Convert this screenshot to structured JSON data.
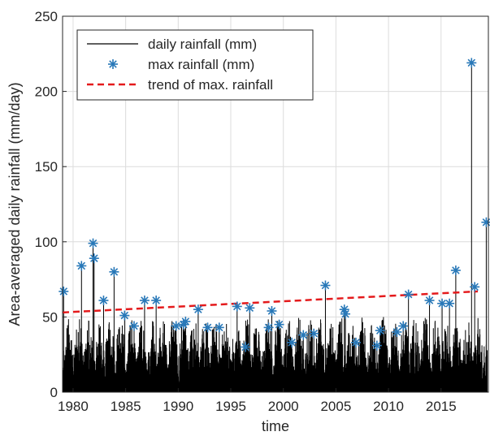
{
  "chart_data": {
    "type": "line",
    "title": "",
    "xlabel": "time",
    "ylabel": "Area-averaged daily rainfall (mm/day)",
    "xlim": [
      1979,
      2019.5
    ],
    "ylim": [
      0,
      250
    ],
    "xticks": [
      1980,
      1985,
      1990,
      1995,
      2000,
      2005,
      2010,
      2015
    ],
    "yticks": [
      0,
      50,
      100,
      150,
      200,
      250
    ],
    "grid": true,
    "legend_position": "top-left",
    "colors": {
      "daily": "#000000",
      "max": "#2878b8",
      "trend": "#e41a1c",
      "grid": "#dcdcdc",
      "axis": "#262626"
    },
    "series": [
      {
        "name": "daily rainfall (mm)",
        "style": "line",
        "note_values": "annual maxima coincide with the max rainfall markers below; remaining daily values are dense spikes mostly between 0 and 50 mm"
      },
      {
        "name": "max rainfall (mm)",
        "style": "asterisk",
        "points": [
          [
            1979.1,
            67
          ],
          [
            1980.8,
            84
          ],
          [
            1981.9,
            99
          ],
          [
            1982.0,
            89
          ],
          [
            1982.9,
            61
          ],
          [
            1983.9,
            80
          ],
          [
            1984.9,
            51
          ],
          [
            1985.8,
            44
          ],
          [
            1986.8,
            61
          ],
          [
            1987.9,
            61
          ],
          [
            1989.8,
            44
          ],
          [
            1990.5,
            45
          ],
          [
            1990.7,
            47
          ],
          [
            1991.9,
            55
          ],
          [
            1992.8,
            43
          ],
          [
            1993.9,
            43
          ],
          [
            1995.6,
            57
          ],
          [
            1996.4,
            30
          ],
          [
            1996.8,
            56
          ],
          [
            1998.9,
            54
          ],
          [
            1998.6,
            43
          ],
          [
            1999.6,
            45
          ],
          [
            2000.8,
            33
          ],
          [
            2001.9,
            38
          ],
          [
            2002.9,
            39
          ],
          [
            2004.0,
            71
          ],
          [
            2005.8,
            55
          ],
          [
            2005.9,
            52
          ],
          [
            2006.9,
            33
          ],
          [
            2008.9,
            31
          ],
          [
            2009.2,
            41
          ],
          [
            2010.8,
            40
          ],
          [
            2011.4,
            44
          ],
          [
            2011.9,
            65
          ],
          [
            2013.9,
            61
          ],
          [
            2015.1,
            59
          ],
          [
            2015.8,
            59
          ],
          [
            2016.4,
            81
          ],
          [
            2017.9,
            219
          ],
          [
            2018.2,
            70
          ],
          [
            2019.3,
            113
          ]
        ]
      },
      {
        "name": "trend of max. rainfall",
        "style": "dashed",
        "points": [
          [
            1979,
            53
          ],
          [
            2018.5,
            67
          ]
        ]
      }
    ]
  }
}
